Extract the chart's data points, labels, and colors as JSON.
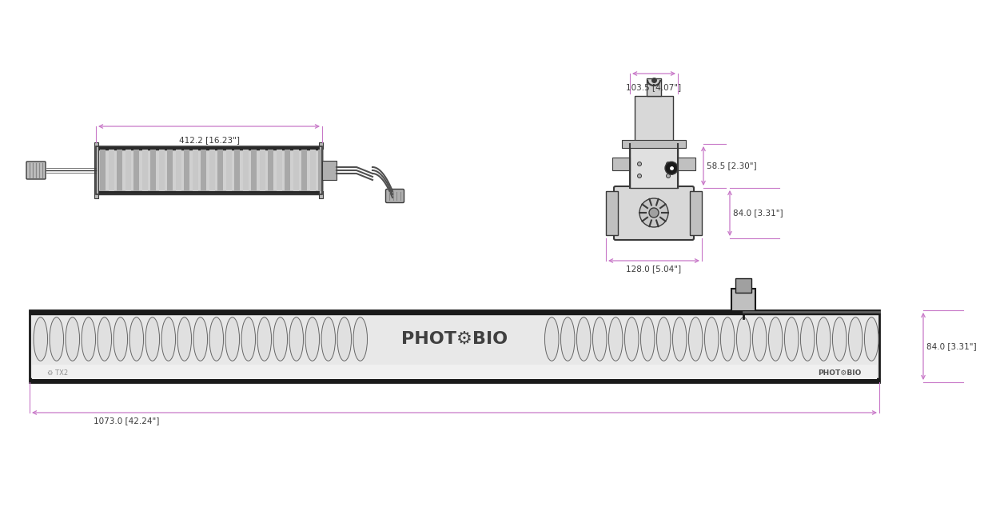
{
  "bg_color": "#ffffff",
  "line_color": "#3a3a3a",
  "dim_color": "#c878c8",
  "text_color": "#3a3a3a",
  "dark_color": "#1a1a1a",
  "mid_color": "#888888",
  "light_gray": "#e8e8e8",
  "fin_gray": "#d0d0d0",
  "dim_labels": {
    "side_width": "412.2 [16.23\"]",
    "top_width": "103.5 [4.07\"]",
    "h58": "58.5 [2.30\"]",
    "h84_top": "84.0 [3.31\"]",
    "w128": "128.0 [5.04\"]",
    "bar_height": "84.0 [3.31\"]",
    "bar_width": "1073.0 [42.24\"]"
  }
}
